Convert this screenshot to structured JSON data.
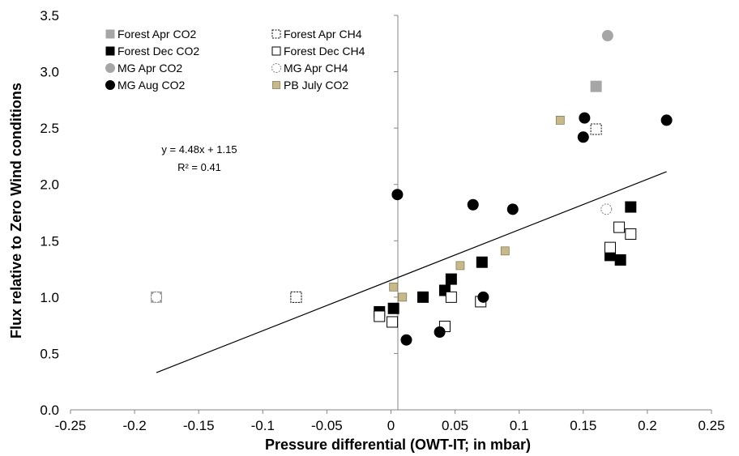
{
  "chart_data": {
    "type": "scatter",
    "xlabel": "Pressure differential (OWT-IT; in mbar)",
    "ylabel": "Flux relative to Zero Wind conditions",
    "xlim": [
      -0.25,
      0.25
    ],
    "ylim": [
      0.0,
      3.5
    ],
    "x_ticks": [
      "-0.25",
      "-0.2",
      "-0.15",
      "-0.1",
      "-0.05",
      "0",
      "0.05",
      "0.1",
      "0.15",
      "0.2",
      "0.25"
    ],
    "y_ticks": [
      "0.0",
      "0.5",
      "1.0",
      "1.5",
      "2.0",
      "2.5",
      "3.0",
      "3.5"
    ],
    "grid": false,
    "legend_position": "top-left",
    "series": [
      {
        "name": "Forest Apr CO2",
        "marker": "square",
        "fill": "#a6a6a6",
        "stroke": "#a6a6a6",
        "points": [
          [
            -0.183,
            1.0
          ],
          [
            -0.074,
            1.0
          ],
          [
            0.16,
            2.87
          ]
        ]
      },
      {
        "name": "Forest Apr CH4",
        "marker": "square",
        "fill": "#ffffff",
        "stroke": "#000000",
        "dashed": true,
        "points": [
          [
            -0.074,
            1.0
          ],
          [
            0.16,
            2.49
          ]
        ]
      },
      {
        "name": "Forest Dec CO2",
        "marker": "square",
        "fill": "#000000",
        "stroke": "#000000",
        "points": [
          [
            -0.009,
            0.87
          ],
          [
            0.002,
            0.9
          ],
          [
            0.025,
            1.0
          ],
          [
            0.042,
            1.06
          ],
          [
            0.047,
            1.16
          ],
          [
            0.071,
            1.31
          ],
          [
            0.171,
            1.37
          ],
          [
            0.179,
            1.33
          ],
          [
            0.187,
            1.8
          ]
        ]
      },
      {
        "name": "Forest Dec CH4",
        "marker": "square",
        "fill": "#ffffff",
        "stroke": "#000000",
        "points": [
          [
            -0.009,
            0.83
          ],
          [
            0.001,
            0.78
          ],
          [
            0.042,
            0.74
          ],
          [
            0.047,
            1.0
          ],
          [
            0.07,
            0.96
          ],
          [
            0.171,
            1.44
          ],
          [
            0.178,
            1.62
          ],
          [
            0.187,
            1.56
          ]
        ]
      },
      {
        "name": "MG Apr CO2",
        "marker": "circle",
        "fill": "#a6a6a6",
        "stroke": "#a6a6a6",
        "points": [
          [
            -0.183,
            1.0
          ],
          [
            0.169,
            3.32
          ]
        ]
      },
      {
        "name": "MG Apr CH4",
        "marker": "circle",
        "fill": "#ffffff",
        "stroke": "#7f7f7f",
        "dashed": true,
        "points": [
          [
            -0.183,
            1.0
          ],
          [
            0.168,
            1.78
          ]
        ]
      },
      {
        "name": "MG Aug CO2",
        "marker": "circle",
        "fill": "#000000",
        "stroke": "#000000",
        "points": [
          [
            0.005,
            1.91
          ],
          [
            0.012,
            0.62
          ],
          [
            0.038,
            0.69
          ],
          [
            0.064,
            1.82
          ],
          [
            0.072,
            1.0
          ],
          [
            0.095,
            1.78
          ],
          [
            0.15,
            2.42
          ],
          [
            0.151,
            2.59
          ],
          [
            0.215,
            2.57
          ]
        ]
      },
      {
        "name": "PB July CO2",
        "marker": "square-small",
        "fill": "#c9b98a",
        "stroke": "#7f7f5a",
        "points": [
          [
            0.002,
            1.09
          ],
          [
            0.009,
            1.0
          ],
          [
            0.054,
            1.28
          ],
          [
            0.089,
            1.41
          ],
          [
            0.132,
            2.57
          ]
        ]
      }
    ],
    "trendline": {
      "slope": 4.48,
      "intercept": 1.15,
      "x_range": [
        -0.183,
        0.215
      ],
      "equation_text": "y = 4.48x + 1.15",
      "r2_text": "R² = 0.41"
    },
    "legend_columns": [
      [
        "Forest Apr CO2",
        "Forest Dec CO2",
        "MG Apr CO2",
        "MG Aug CO2"
      ],
      [
        "Forest Apr CH4",
        "Forest Dec CH4",
        "MG Apr CH4",
        "PB July CO2"
      ]
    ]
  }
}
